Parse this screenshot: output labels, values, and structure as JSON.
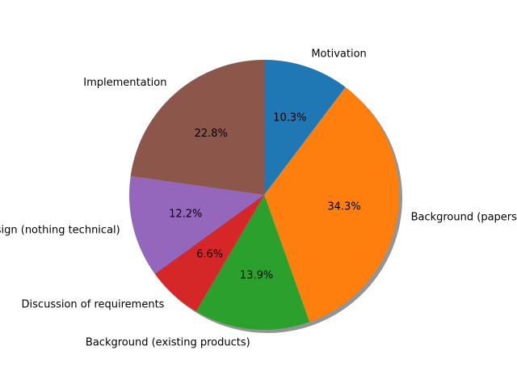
{
  "chart_data": {
    "type": "pie",
    "title": "",
    "start_angle_deg": 90,
    "direction": "clockwise",
    "shadow": true,
    "slices": [
      {
        "label": "Motivation",
        "value": 10.3,
        "pct_label": "10.3%",
        "color": "#1f77b4"
      },
      {
        "label": "Background (papers)",
        "value": 34.3,
        "pct_label": "34.3%",
        "color": "#ff7f0e"
      },
      {
        "label": "Background (existing products)",
        "value": 13.9,
        "pct_label": "13.9%",
        "color": "#2ca02c"
      },
      {
        "label": "Discussion of requirements",
        "value": 6.6,
        "pct_label": "6.6%",
        "color": "#d62728"
      },
      {
        "label": "Design (nothing technical)",
        "value": 12.2,
        "pct_label": "12.2%",
        "color": "#9467bd"
      },
      {
        "label": "Implementation",
        "value": 22.8,
        "pct_label": "22.8%",
        "color": "#8c564b"
      }
    ]
  }
}
